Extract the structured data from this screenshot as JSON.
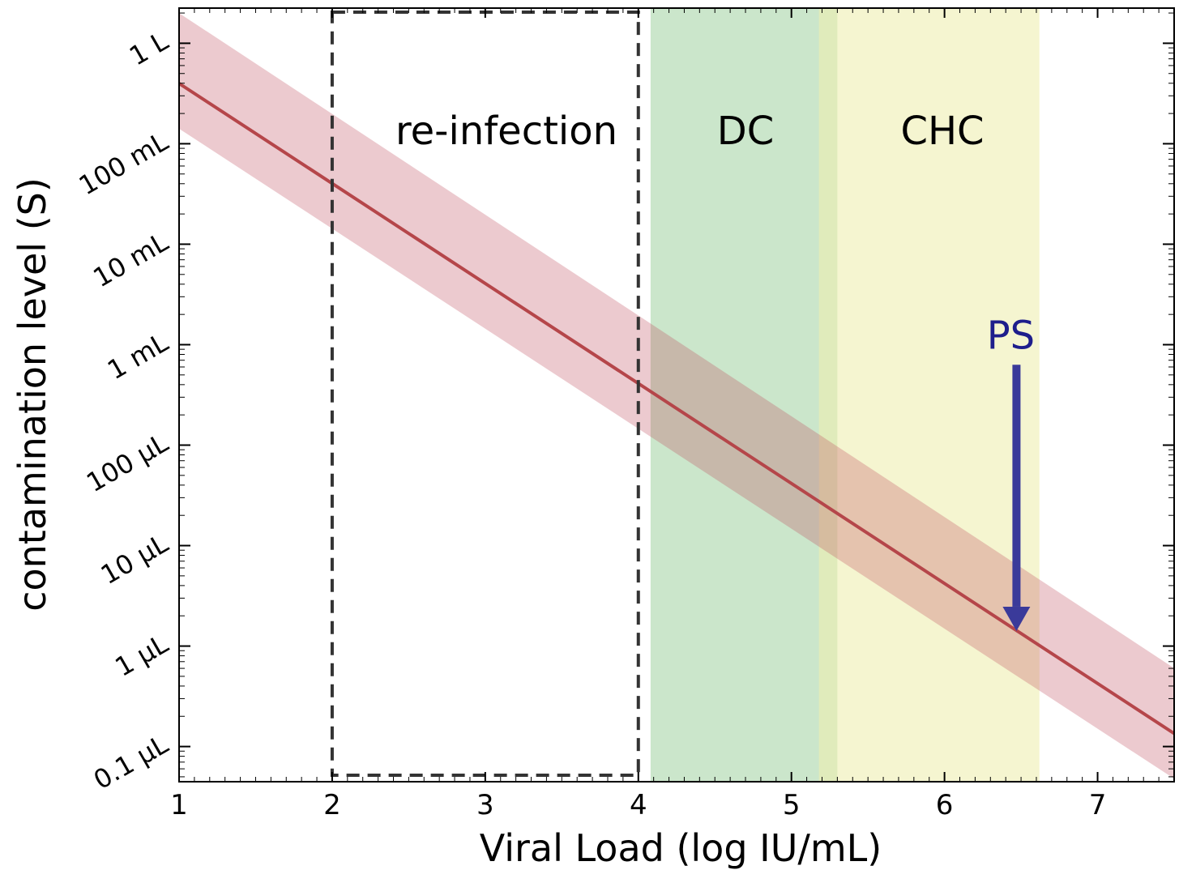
{
  "chart_data": {
    "type": "line",
    "xlabel": "Viral Load (log IU/mL)",
    "ylabel": "contamination level (S)",
    "xlim": [
      1,
      7.5
    ],
    "ylim_log10_L": [
      -7.35,
      0.35
    ],
    "x_ticks": [
      "1",
      "2",
      "3",
      "4",
      "5",
      "6",
      "7"
    ],
    "y_ticks": [
      {
        "label": "0.1 μL",
        "log10_L": -7
      },
      {
        "label": "1 μL",
        "log10_L": -6
      },
      {
        "label": "10 μL",
        "log10_L": -5
      },
      {
        "label": "100 μL",
        "log10_L": -4
      },
      {
        "label": "1 mL",
        "log10_L": -3
      },
      {
        "label": "10 mL",
        "log10_L": -2
      },
      {
        "label": "100 mL",
        "log10_L": -1
      },
      {
        "label": "1 L",
        "log10_L": 0
      }
    ],
    "series": [
      {
        "x": [
          1,
          7.5
        ],
        "y_log10_L": [
          -0.4,
          -6.87
        ],
        "band_upper_log10_L": [
          0.3,
          -6.22
        ],
        "band_lower_log10_L": [
          -0.85,
          -7.32
        ],
        "color": "#b5464a",
        "band_color": "#e3b7bb"
      }
    ],
    "regions": [
      {
        "label": "re-infection",
        "x_start": 2.0,
        "x_end": 4.0,
        "style": "dashed-box",
        "color": "#333333"
      },
      {
        "label": "DC",
        "x_start": 4.08,
        "x_end": 5.3,
        "color": "#a8d5a8"
      },
      {
        "label": "CHC",
        "x_start": 5.18,
        "x_end": 6.62,
        "color": "#eeeeb0"
      }
    ],
    "annotations": [
      {
        "label": "PS",
        "x": 6.47,
        "arrow_from_log10_L": -3.2,
        "arrow_to_log10_L": -5.85,
        "color": "#3a3a9a"
      }
    ]
  }
}
